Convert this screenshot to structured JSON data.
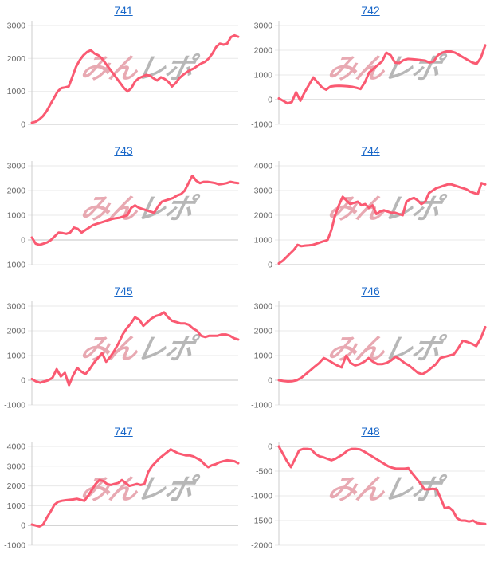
{
  "page": {
    "background": "#ffffff"
  },
  "colors": {
    "line": "#fa5a72",
    "grid_line": "#e8e8e8",
    "zero_line": "#c6c6c6",
    "axis_line": "#cccccc",
    "tick_text": "#666666",
    "title_link": "#1766c8",
    "watermark_pink": "#e49aa4",
    "watermark_gray": "#aaaaaa"
  },
  "watermark": {
    "left": "みん",
    "right": "レポ"
  },
  "chart_data": [
    {
      "type": "line",
      "title": "741",
      "xlabel": "",
      "ylabel": "",
      "ylim": [
        0,
        3000
      ],
      "yticks": [
        0,
        1000,
        2000,
        3000
      ],
      "grid": true,
      "legend": "none",
      "values": [
        50,
        80,
        150,
        250,
        400,
        600,
        800,
        1000,
        1100,
        1120,
        1150,
        1450,
        1750,
        1950,
        2100,
        2200,
        2250,
        2150,
        2100,
        2000,
        1850,
        1700,
        1550,
        1400,
        1250,
        1100,
        1000,
        1100,
        1300,
        1400,
        1450,
        1500,
        1480,
        1400,
        1330,
        1430,
        1380,
        1300,
        1150,
        1250,
        1400,
        1500,
        1580,
        1650,
        1700,
        1780,
        1850,
        1900,
        2000,
        2150,
        2350,
        2450,
        2420,
        2450,
        2650,
        2700,
        2660
      ]
    },
    {
      "type": "line",
      "title": "742",
      "xlabel": "",
      "ylabel": "",
      "ylim": [
        -1000,
        3000
      ],
      "yticks": [
        -1000,
        0,
        1000,
        2000,
        3000
      ],
      "grid": true,
      "legend": "none",
      "values": [
        50,
        -50,
        -150,
        -100,
        300,
        -50,
        300,
        600,
        900,
        700,
        500,
        400,
        530,
        550,
        560,
        550,
        540,
        520,
        480,
        430,
        700,
        1100,
        1250,
        1400,
        1550,
        1900,
        1800,
        1500,
        1480,
        1600,
        1650,
        1640,
        1620,
        1600,
        1580,
        1500,
        1550,
        1800,
        1900,
        1950,
        1950,
        1900,
        1800,
        1700,
        1600,
        1500,
        1450,
        1700,
        2200
      ]
    },
    {
      "type": "line",
      "title": "743",
      "xlabel": "",
      "ylabel": "",
      "ylim": [
        -1000,
        3000
      ],
      "yticks": [
        -1000,
        0,
        1000,
        2000,
        3000
      ],
      "grid": true,
      "legend": "none",
      "values": [
        100,
        -150,
        -200,
        -150,
        -100,
        0,
        150,
        300,
        280,
        250,
        300,
        500,
        450,
        300,
        400,
        500,
        600,
        650,
        700,
        750,
        800,
        850,
        880,
        900,
        950,
        1000,
        1300,
        1400,
        1300,
        1250,
        1200,
        1150,
        1100,
        1350,
        1550,
        1600,
        1650,
        1700,
        1800,
        1850,
        2000,
        2300,
        2600,
        2400,
        2300,
        2350,
        2350,
        2330,
        2300,
        2250,
        2270,
        2300,
        2350,
        2320,
        2300
      ]
    },
    {
      "type": "line",
      "title": "744",
      "xlabel": "",
      "ylabel": "",
      "ylim": [
        0,
        4000
      ],
      "yticks": [
        0,
        1000,
        2000,
        3000,
        4000
      ],
      "grid": true,
      "legend": "none",
      "values": [
        50,
        150,
        300,
        450,
        600,
        800,
        750,
        770,
        780,
        800,
        850,
        900,
        950,
        1000,
        1400,
        2000,
        2400,
        2750,
        2600,
        2450,
        2500,
        2550,
        2400,
        2450,
        2300,
        2400,
        2050,
        2150,
        2200,
        2150,
        2100,
        2100,
        2050,
        2000,
        2550,
        2650,
        2700,
        2600,
        2450,
        2550,
        2900,
        3000,
        3100,
        3150,
        3200,
        3250,
        3250,
        3200,
        3150,
        3100,
        3050,
        2950,
        2900,
        2850,
        3300,
        3250
      ]
    },
    {
      "type": "line",
      "title": "745",
      "xlabel": "",
      "ylabel": "",
      "ylim": [
        -1000,
        3000
      ],
      "yticks": [
        -1000,
        0,
        1000,
        2000,
        3000
      ],
      "grid": true,
      "legend": "none",
      "values": [
        50,
        -50,
        -100,
        -50,
        0,
        100,
        450,
        150,
        300,
        -200,
        200,
        500,
        350,
        250,
        450,
        700,
        900,
        1100,
        750,
        950,
        1200,
        1500,
        1850,
        2100,
        2300,
        2550,
        2450,
        2200,
        2350,
        2500,
        2600,
        2650,
        2750,
        2550,
        2400,
        2350,
        2300,
        2300,
        2250,
        2100,
        2000,
        1800,
        1750,
        1800,
        1800,
        1800,
        1850,
        1850,
        1800,
        1700,
        1650
      ]
    },
    {
      "type": "line",
      "title": "746",
      "xlabel": "",
      "ylabel": "",
      "ylim": [
        -1000,
        3000
      ],
      "yticks": [
        -1000,
        0,
        1000,
        2000,
        3000
      ],
      "grid": true,
      "legend": "none",
      "values": [
        0,
        -30,
        -50,
        -40,
        0,
        100,
        250,
        400,
        550,
        700,
        900,
        820,
        700,
        600,
        520,
        1000,
        700,
        600,
        650,
        750,
        900,
        750,
        650,
        650,
        700,
        800,
        950,
        850,
        700,
        600,
        450,
        300,
        250,
        350,
        500,
        650,
        900,
        950,
        1000,
        1050,
        1300,
        1600,
        1550,
        1480,
        1380,
        1700,
        2150
      ]
    },
    {
      "type": "line",
      "title": "747",
      "xlabel": "",
      "ylabel": "",
      "ylim": [
        -1000,
        4000
      ],
      "yticks": [
        -1000,
        0,
        1000,
        2000,
        3000,
        4000
      ],
      "grid": true,
      "legend": "none",
      "values": [
        50,
        0,
        -50,
        50,
        400,
        700,
        1050,
        1200,
        1250,
        1280,
        1300,
        1320,
        1350,
        1300,
        1250,
        1500,
        1800,
        2100,
        2300,
        2250,
        2100,
        2050,
        2100,
        2150,
        2300,
        2150,
        2000,
        2050,
        2100,
        2050,
        2100,
        2700,
        3000,
        3200,
        3400,
        3550,
        3700,
        3850,
        3750,
        3650,
        3600,
        3550,
        3550,
        3500,
        3400,
        3300,
        3100,
        2950,
        3050,
        3100,
        3200,
        3250,
        3300,
        3280,
        3250,
        3150
      ]
    },
    {
      "type": "line",
      "title": "748",
      "xlabel": "",
      "ylabel": "",
      "ylim": [
        -2000,
        0
      ],
      "yticks": [
        -2000,
        -1500,
        -1000,
        -500,
        0
      ],
      "grid": true,
      "legend": "none",
      "values": [
        0,
        -150,
        -300,
        -420,
        -250,
        -80,
        -50,
        -50,
        -60,
        -150,
        -200,
        -220,
        -250,
        -280,
        -250,
        -200,
        -150,
        -80,
        -50,
        -50,
        -60,
        -100,
        -150,
        -200,
        -250,
        -300,
        -350,
        -400,
        -430,
        -450,
        -450,
        -450,
        -440,
        -550,
        -650,
        -750,
        -870,
        -870,
        -860,
        -870,
        -1050,
        -1250,
        -1230,
        -1300,
        -1450,
        -1500,
        -1500,
        -1520,
        -1500,
        -1550,
        -1560,
        -1570
      ]
    }
  ]
}
